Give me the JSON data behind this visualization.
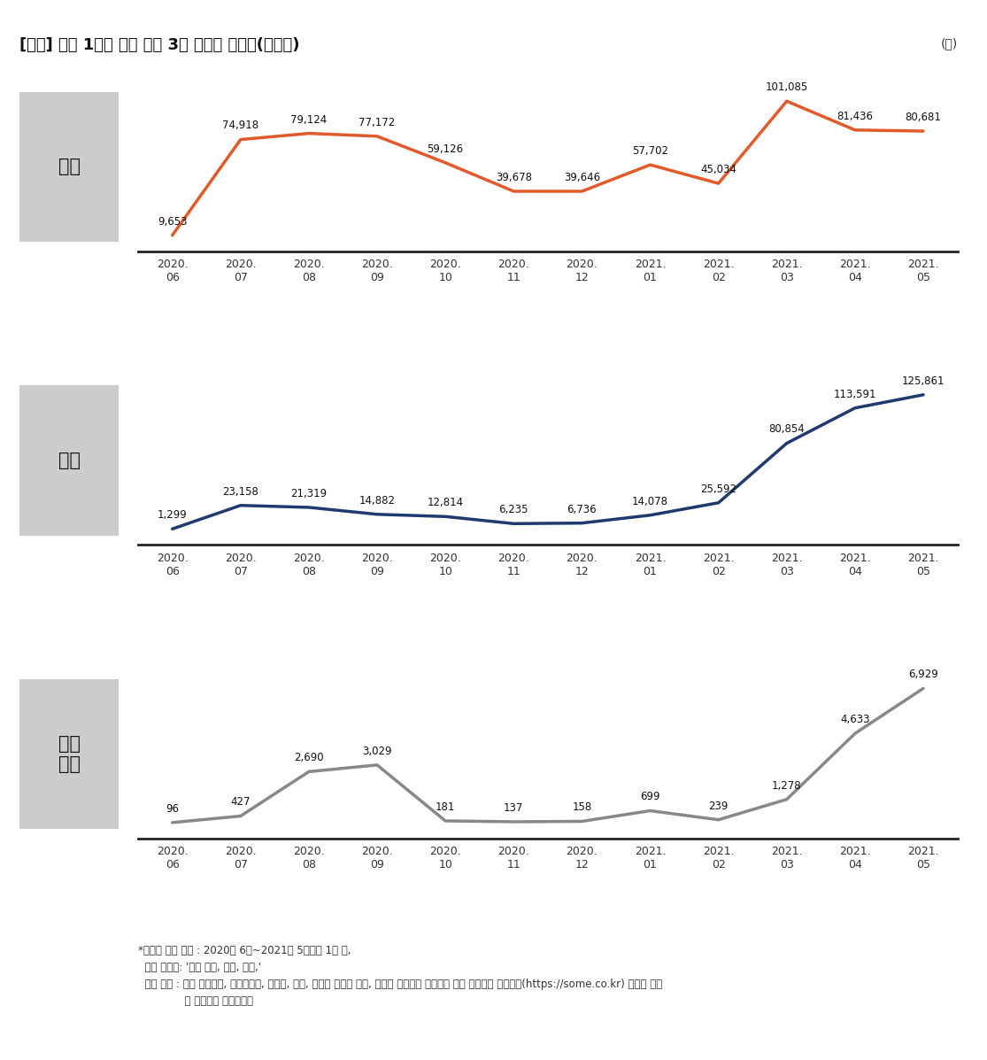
{
  "title": "[그림] 지난 1년간 젠더 관련 3개 키워드 버즈량(언급량)",
  "unit_label": "(건)",
  "x_labels_line1": [
    "2020.",
    "2020.",
    "2020.",
    "2020.",
    "2020.",
    "2020.",
    "2020.",
    "2021.",
    "2021.",
    "2021.",
    "2021.",
    "2021."
  ],
  "x_labels_line2": [
    "06",
    "07",
    "08",
    "09",
    "10",
    "11",
    "12",
    "01",
    "02",
    "03",
    "04",
    "05"
  ],
  "series1": {
    "label": "여혐",
    "values": [
      9653,
      74918,
      79124,
      77172,
      59126,
      39678,
      39646,
      57702,
      45034,
      101085,
      81436,
      80681
    ],
    "color": "#E05A2B",
    "line_width": 2.5
  },
  "series2": {
    "label": "남혐",
    "values": [
      1299,
      23158,
      21319,
      14882,
      12814,
      6235,
      6736,
      14078,
      25592,
      80854,
      113591,
      125861
    ],
    "color": "#1F3A6E",
    "line_width": 2.5
  },
  "series3": {
    "label": "젠더\n갈등",
    "values": [
      96,
      427,
      2690,
      3029,
      181,
      137,
      158,
      699,
      239,
      1278,
      4633,
      6929
    ],
    "color": "#888888",
    "line_width": 2.5
  },
  "footnote_line1": "*키워드 분석 기간 : 2020년 6월~2021년 5월까지 1년 간,",
  "footnote_line2": "  분석 키워드: '젠더 갈등, 여혐, 남혐,'",
  "footnote_line3": "  분석 대상 : 국내 커뮤니티, 인스타그램, 블로그, 뉴스, 트위터 피드의 제목, 내용을 수집하여 빅데이터 분석 싸이트인 썸트렌드(https://some.co.kr) 분석을 통해",
  "footnote_line4": "              본 연구소가 정리하였음",
  "background_color": "#ffffff",
  "label_box_color": "#cccccc",
  "axis_line_color": "#222222"
}
